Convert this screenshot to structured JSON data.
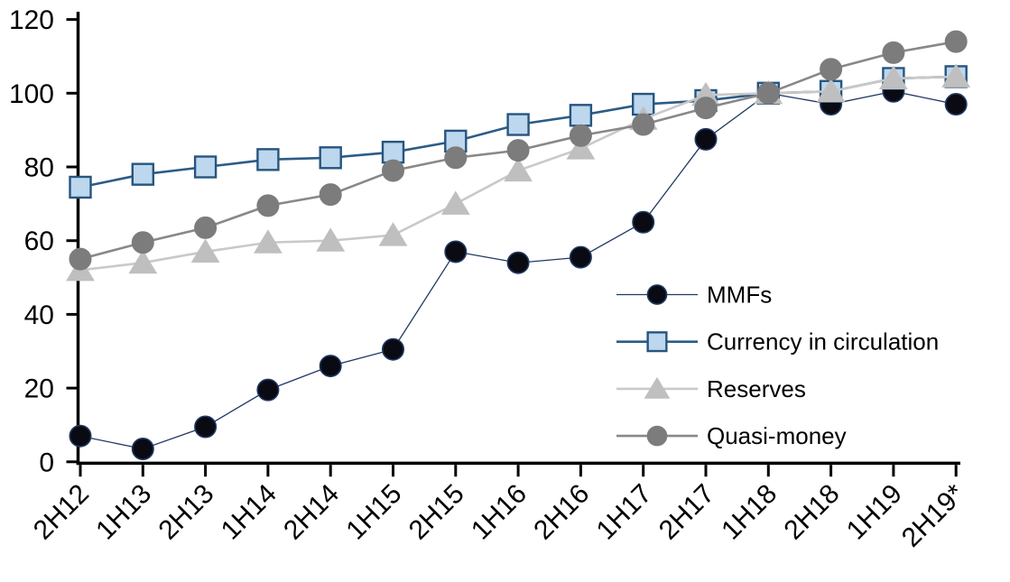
{
  "chart_data": {
    "type": "line",
    "title": "",
    "xlabel": "",
    "ylabel": "",
    "grid": false,
    "background": "#ffffff",
    "axis_color": "#000000",
    "legend_position": "inside-right",
    "categories": [
      "2H12",
      "1H13",
      "2H13",
      "1H14",
      "2H14",
      "1H15",
      "2H15",
      "1H16",
      "2H16",
      "1H17",
      "2H17",
      "1H18",
      "2H18",
      "1H19",
      "2H19*"
    ],
    "y_axis": {
      "min": 0,
      "max": 120,
      "tick_step": 20,
      "tick_labels": [
        "0",
        "20",
        "40",
        "60",
        "80",
        "100",
        "120"
      ]
    },
    "series": [
      {
        "name": "MMFs",
        "marker": "circle",
        "line_color": "#1f3864",
        "line_width": 1.3,
        "marker_fill": "#0a0a12",
        "marker_stroke": "#1f3864",
        "values": [
          7,
          3.5,
          9.5,
          19.5,
          26,
          30.5,
          57,
          54,
          55.5,
          65,
          87.5,
          100,
          97,
          100.5,
          97
        ]
      },
      {
        "name": "Currency in circulation",
        "marker": "square",
        "line_color": "#2b5c87",
        "line_width": 2.6,
        "marker_fill": "#bdd7ee",
        "marker_stroke": "#27557e",
        "values": [
          74.5,
          78,
          80,
          82,
          82.5,
          84,
          87,
          91.5,
          94,
          97,
          98,
          100,
          100.5,
          104,
          104.5
        ]
      },
      {
        "name": "Reserves",
        "marker": "triangle",
        "line_color": "#c9c9c9",
        "line_width": 2.6,
        "marker_fill": "#bfbfbf",
        "marker_stroke": "#bfbfbf",
        "values": [
          52,
          54,
          57,
          59.5,
          60,
          61.5,
          70,
          79,
          85,
          93,
          99.5,
          100,
          100.5,
          104,
          104.5
        ]
      },
      {
        "name": "Quasi-money",
        "marker": "circle",
        "line_color": "#888888",
        "line_width": 2.6,
        "marker_fill": "#7c7c7c",
        "marker_stroke": "#7c7c7c",
        "values": [
          55,
          59.5,
          63.5,
          69.5,
          72.5,
          79,
          82.5,
          84.5,
          88.5,
          91.5,
          96,
          100,
          106.5,
          111,
          114
        ]
      }
    ]
  }
}
